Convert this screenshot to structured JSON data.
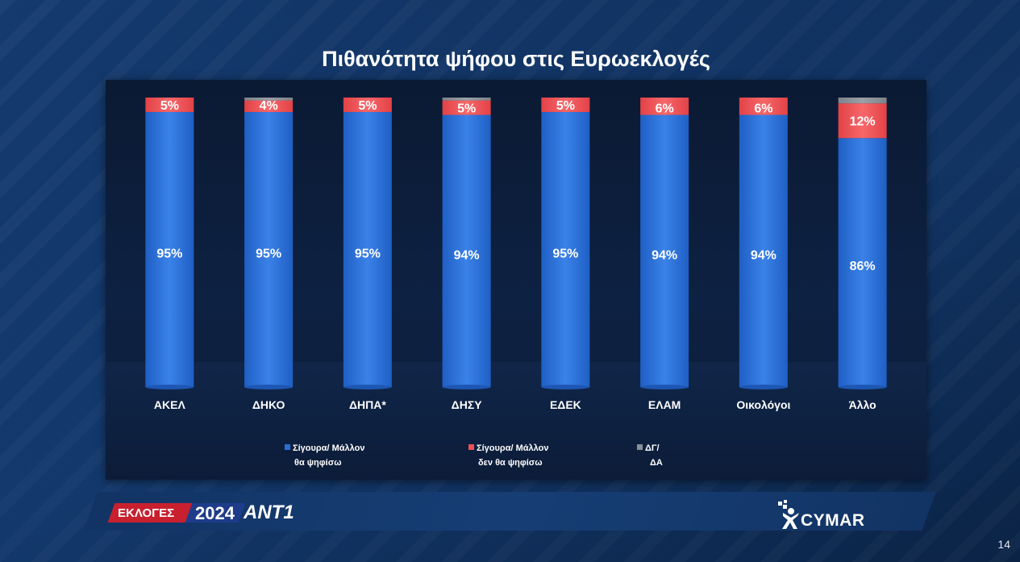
{
  "page": {
    "number": "14"
  },
  "chart_data": {
    "type": "bar",
    "stacked": true,
    "percent": true,
    "title": "Πιθανότητα ψήφου στις Ευρωεκλογές",
    "categories": [
      "ΑΚΕΛ",
      "ΔΗΚΟ",
      "ΔΗΠΑ*",
      "ΔΗΣΥ",
      "ΕΔΕΚ",
      "ΕΛΑΜ",
      "Οικολόγοι",
      "Άλλο"
    ],
    "series": [
      {
        "name": "Σίγουρα/ Μάλλον θα ψηφίσω",
        "legend_lines": [
          "Σίγουρα/ Μάλλον",
          "θα ψηφίσω"
        ],
        "color": "#2a6fd3",
        "values": [
          95,
          95,
          95,
          94,
          95,
          94,
          94,
          86
        ]
      },
      {
        "name": "Σίγουρα/ Μάλλον δεν θα ψηφίσω",
        "legend_lines": [
          "Σίγουρα/ Μάλλον",
          "δεν θα ψηφίσω"
        ],
        "color": "#ef5054",
        "values": [
          5,
          4,
          5,
          5,
          5,
          6,
          6,
          12
        ]
      },
      {
        "name": "ΔΓ/ ΔΑ",
        "legend_lines": [
          "ΔΓ/",
          "ΔΑ"
        ],
        "color": "#8a8f96",
        "values": [
          0,
          1,
          0,
          1,
          0,
          0,
          0,
          2
        ]
      }
    ],
    "data_labels": [
      [
        "95%",
        "95%",
        "95%",
        "94%",
        "95%",
        "94%",
        "94%",
        "86%"
      ],
      [
        "5%",
        "4%",
        "5%",
        "5%",
        "5%",
        "6%",
        "6%",
        "12%"
      ],
      [
        "",
        "",
        "",
        "",
        "",
        "",
        "",
        ""
      ]
    ],
    "ylim": [
      0,
      100
    ],
    "grid": false,
    "legend": "bottom"
  },
  "branding": {
    "left_tag": "ΕΚΛΟΓΕΣ",
    "left_year": "2024",
    "left_channel": "ANT1",
    "right_logo": "CYMAR"
  }
}
